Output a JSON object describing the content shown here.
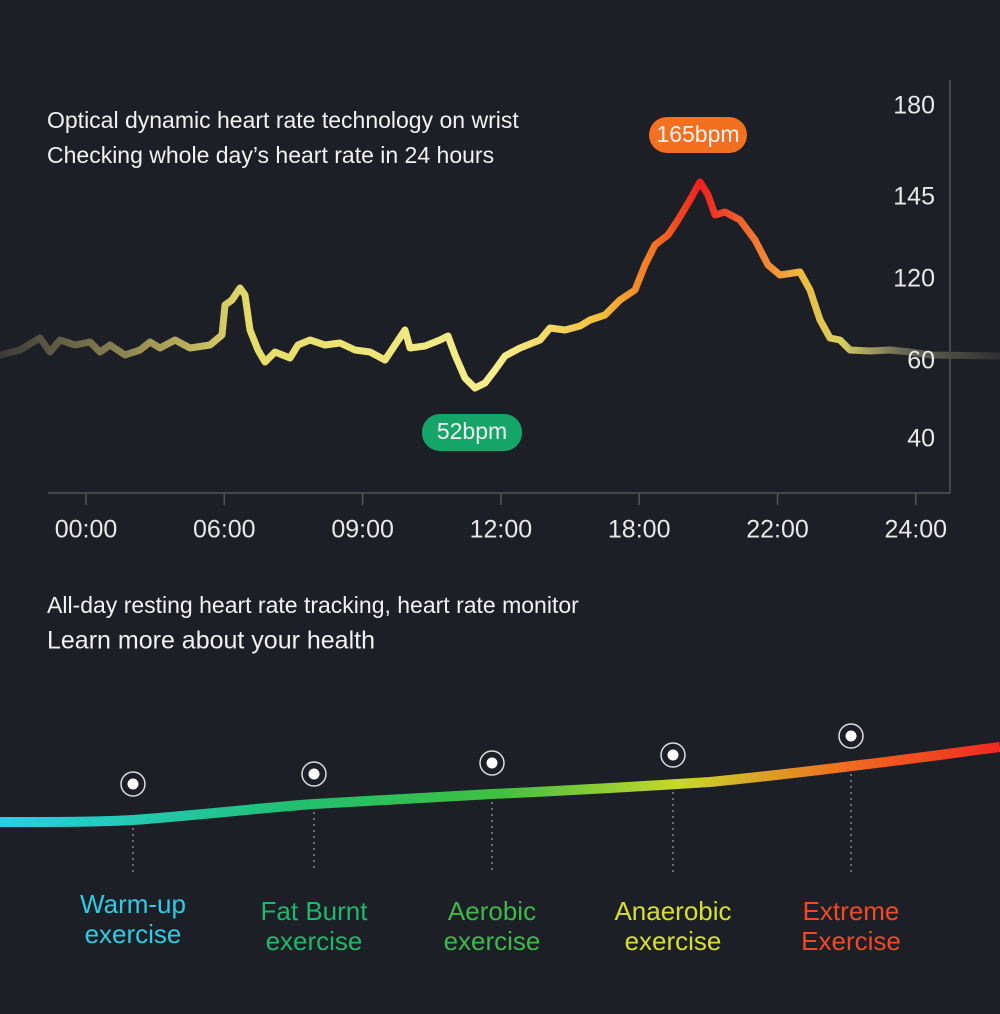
{
  "header": {
    "line1": "Optical dynamic heart rate technology on wrist",
    "line2": "Checking whole day’s heart rate in 24 hours"
  },
  "chart": {
    "y_labels": [
      "180",
      "145",
      "120",
      "60",
      "40"
    ],
    "x_labels": [
      "00:00",
      "06:00",
      "09:00",
      "12:00",
      "18:00",
      "22:00",
      "24:00"
    ],
    "peak_label": "165bpm",
    "low_label": "52bpm"
  },
  "section2": {
    "line1": "All-day resting heart rate tracking, heart rate monitor",
    "line2": "Learn more about your health"
  },
  "zones": [
    {
      "line1": "Warm-up",
      "line2": "exercise",
      "color": "#2fcbe3"
    },
    {
      "line1": "Fat Burnt",
      "line2": "exercise",
      "color": "#1fb86a"
    },
    {
      "line1": "Aerobic",
      "line2": "exercise",
      "color": "#3fb84a"
    },
    {
      "line1": "Anaerobic",
      "line2": "exercise",
      "color": "#d6e02a"
    },
    {
      "line1": "Extreme",
      "line2": "Exercise",
      "color": "#f04a24"
    }
  ]
}
